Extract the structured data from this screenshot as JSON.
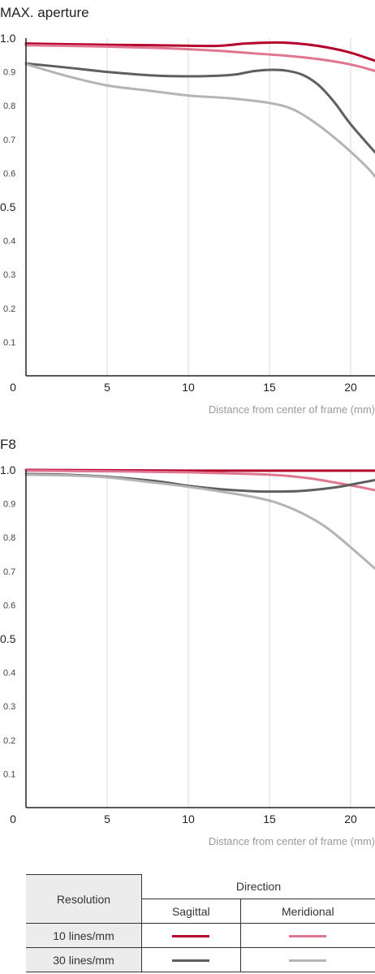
{
  "chart_data": [
    {
      "type": "line",
      "title": "MAX. aperture",
      "xlabel": "Distance from center of frame (mm)",
      "ylabel": "",
      "xlim": [
        0,
        21.5
      ],
      "ylim": [
        0,
        1.0
      ],
      "x_ticks": [
        "0",
        "5",
        "10",
        "15",
        "20"
      ],
      "y_ticks": [
        "1.0",
        "0.9",
        "0.8",
        "0.7",
        "0.6",
        "0.5",
        "0.4",
        "0.3",
        "0.2",
        "0.1"
      ],
      "grid": "vertical",
      "series": [
        {
          "name": "",
          "resolution": "10 lines/mm",
          "direction": "Sagittal",
          "color": "#b5002e",
          "x": [
            0,
            4,
            8,
            11.7,
            13.5,
            15.5,
            17,
            18.5,
            20,
            21.5
          ],
          "y": [
            0.984,
            0.981,
            0.979,
            0.977,
            0.984,
            0.987,
            0.983,
            0.973,
            0.957,
            0.933
          ]
        },
        {
          "name": "",
          "resolution": "10 lines/mm",
          "direction": "Meridional",
          "color": "#e07590",
          "x": [
            0,
            4,
            8,
            11.7,
            14,
            16,
            18,
            20,
            21.5
          ],
          "y": [
            0.979,
            0.976,
            0.971,
            0.963,
            0.955,
            0.948,
            0.938,
            0.922,
            0.903
          ]
        },
        {
          "name": "",
          "resolution": "30 lines/mm",
          "direction": "Sagittal",
          "color": "#5f5f5f",
          "x": [
            0,
            2.5,
            5,
            8,
            10,
            12,
            13,
            14,
            15,
            16,
            17,
            18,
            19,
            20,
            21.5
          ],
          "y": [
            0.925,
            0.913,
            0.9,
            0.889,
            0.887,
            0.889,
            0.893,
            0.902,
            0.906,
            0.904,
            0.892,
            0.862,
            0.81,
            0.745,
            0.662
          ]
        },
        {
          "name": "",
          "resolution": "30 lines/mm",
          "direction": "Meridional",
          "color": "#b4b4b4",
          "x": [
            0,
            2.5,
            5,
            7.5,
            10,
            12.5,
            15,
            16.5,
            18,
            19.5,
            21,
            21.5
          ],
          "y": [
            0.923,
            0.888,
            0.86,
            0.845,
            0.83,
            0.822,
            0.808,
            0.788,
            0.743,
            0.685,
            0.618,
            0.59
          ]
        }
      ]
    },
    {
      "type": "line",
      "title": "F8",
      "xlabel": "Distance from center of frame (mm)",
      "ylabel": "",
      "xlim": [
        0,
        21.5
      ],
      "ylim": [
        0,
        1.0
      ],
      "x_ticks": [
        "0",
        "5",
        "10",
        "15",
        "20"
      ],
      "y_ticks": [
        "1.0",
        "0.9",
        "0.8",
        "0.7",
        "0.6",
        "0.5",
        "0.4",
        "0.3",
        "0.2",
        "0.1"
      ],
      "grid": "vertical",
      "series": [
        {
          "name": "",
          "resolution": "10 lines/mm",
          "direction": "Sagittal",
          "color": "#b5002e",
          "x": [
            0,
            5,
            10,
            15,
            20,
            21.5
          ],
          "y": [
            1.0,
            0.999,
            0.998,
            0.998,
            0.998,
            0.998
          ]
        },
        {
          "name": "",
          "resolution": "10 lines/mm",
          "direction": "Meridional",
          "color": "#e07590",
          "x": [
            0,
            5,
            10,
            14,
            16,
            17.5,
            19,
            20.5,
            21.5
          ],
          "y": [
            0.998,
            0.996,
            0.993,
            0.988,
            0.983,
            0.975,
            0.963,
            0.95,
            0.94
          ]
        },
        {
          "name": "",
          "resolution": "30 lines/mm",
          "direction": "Sagittal",
          "color": "#5f5f5f",
          "x": [
            0,
            2.5,
            5,
            8,
            10,
            12,
            14,
            15.5,
            17,
            19,
            20.5,
            21.5
          ],
          "y": [
            0.988,
            0.986,
            0.98,
            0.967,
            0.953,
            0.943,
            0.937,
            0.936,
            0.938,
            0.948,
            0.961,
            0.97
          ]
        },
        {
          "name": "",
          "resolution": "30 lines/mm",
          "direction": "Meridional",
          "color": "#b4b4b4",
          "x": [
            0,
            2.5,
            5,
            8,
            10,
            12,
            14,
            15.5,
            17,
            18.5,
            20,
            21.5
          ],
          "y": [
            0.986,
            0.984,
            0.978,
            0.962,
            0.95,
            0.936,
            0.92,
            0.902,
            0.872,
            0.83,
            0.771,
            0.708
          ]
        }
      ]
    }
  ],
  "legend": {
    "resolution_header": "Resolution",
    "direction_header": "Direction",
    "sagittal_label": "Sagittal",
    "meridional_label": "Meridional",
    "rows": [
      {
        "label": "10 lines/mm",
        "sagittal_color": "#b5002e",
        "meridional_color": "#e07590"
      },
      {
        "label": "30 lines/mm",
        "sagittal_color": "#5f5f5f",
        "meridional_color": "#b4b4b4"
      }
    ]
  }
}
